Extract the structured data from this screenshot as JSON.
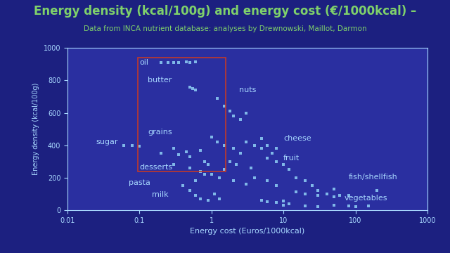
{
  "chart_data": {
    "type": "scatter",
    "title": "Energy density (kcal/100g) and energy cost (€/1000kcal) –",
    "subtitle": "Data from INCA nutrient database: analyses by Drewnowski, Maillot, Darmon",
    "x_label": "Energy cost (Euros/1000kcal)",
    "y_label": "Energy density (kcal/100g)",
    "log": "x",
    "xlim": [
      0.01,
      1000
    ],
    "ylim": [
      0,
      1000
    ],
    "xticks": [
      0.01,
      0.1,
      1,
      10,
      100,
      1000
    ],
    "yticks": [
      0,
      200,
      400,
      600,
      800,
      1000
    ],
    "grid": false,
    "color": "#8fd0f5",
    "marker": "square",
    "x": [
      0.2,
      0.25,
      0.3,
      0.35,
      0.45,
      0.5,
      0.6,
      0.5,
      0.55,
      0.6,
      0.06,
      0.08,
      0.1,
      0.2,
      0.3,
      0.35,
      0.45,
      0.5,
      0.7,
      0.8,
      0.9,
      1.5,
      1.8,
      2,
      2.5,
      3,
      1.2,
      1,
      1.2,
      1.5,
      2,
      2.5,
      3,
      4,
      5,
      1.8,
      2.2,
      3.5,
      1.5,
      6,
      8,
      10,
      12,
      1,
      1.3,
      2,
      3,
      4,
      6,
      8,
      15,
      20,
      25,
      30,
      40,
      50,
      60,
      5,
      6,
      7,
      8,
      0.4,
      0.5,
      0.6,
      0.7,
      0.9,
      1.1,
      1.3,
      5,
      6,
      8,
      10,
      12,
      15,
      20,
      30,
      50,
      80,
      200,
      10,
      20,
      30,
      50,
      80,
      100,
      150,
      0.3,
      0.5,
      0.7,
      0.8,
      0.6
    ],
    "values": [
      910,
      910,
      910,
      910,
      915,
      910,
      915,
      760,
      750,
      740,
      400,
      400,
      395,
      350,
      380,
      340,
      360,
      330,
      370,
      300,
      280,
      640,
      610,
      580,
      560,
      600,
      690,
      450,
      420,
      400,
      380,
      350,
      420,
      400,
      380,
      300,
      280,
      260,
      250,
      320,
      300,
      280,
      250,
      220,
      200,
      180,
      160,
      200,
      180,
      150,
      200,
      180,
      150,
      120,
      100,
      130,
      90,
      440,
      400,
      350,
      380,
      150,
      120,
      90,
      70,
      60,
      100,
      70,
      60,
      50,
      45,
      55,
      40,
      110,
      100,
      90,
      80,
      90,
      120,
      30,
      25,
      20,
      30,
      25,
      20,
      25,
      280,
      260,
      240,
      220,
      180
    ],
    "annotations": [
      {
        "text": "oil",
        "x": 0.1,
        "y": 910
      },
      {
        "text": "butter",
        "x": 0.13,
        "y": 800
      },
      {
        "text": "nuts",
        "x": 2.4,
        "y": 740
      },
      {
        "text": "sugar",
        "x": 0.025,
        "y": 420
      },
      {
        "text": "grains",
        "x": 0.13,
        "y": 480
      },
      {
        "text": "cheese",
        "x": 10,
        "y": 440
      },
      {
        "text": "fruit",
        "x": 10,
        "y": 320
      },
      {
        "text": "desserts",
        "x": 0.1,
        "y": 265
      },
      {
        "text": "fish/shellfish",
        "x": 80,
        "y": 205
      },
      {
        "text": "pasta",
        "x": 0.07,
        "y": 170
      },
      {
        "text": "milk",
        "x": 0.15,
        "y": 95
      },
      {
        "text": "vegetables",
        "x": 70,
        "y": 75
      }
    ]
  }
}
